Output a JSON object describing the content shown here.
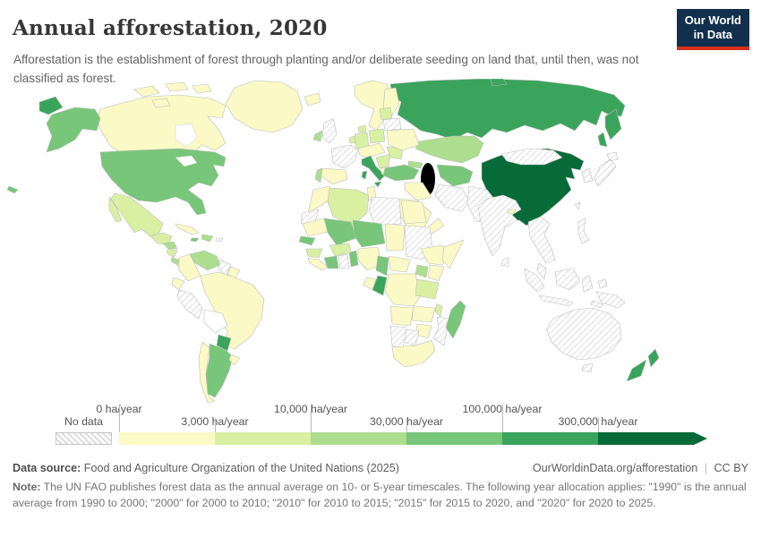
{
  "header": {
    "title": "Annual afforestation, 2020",
    "subtitle": "Afforestation is the establishment of forest through planting and/or deliberate seeding on land that, until then, was not classified as forest.",
    "logo_line1": "Our World",
    "logo_line2": "in Data"
  },
  "colors": {
    "brand_navy": "#12304d",
    "brand_red": "#dc2e1c",
    "title": "#373737",
    "subtitle": "#636363",
    "text": "#5d5d5d",
    "note": "#757575",
    "border": "#bcbcbc"
  },
  "legend": {
    "no_data_label": "No data",
    "tick_labels_top": [
      "0 ha/year",
      "10,000 ha/year",
      "100,000 ha/year"
    ],
    "tick_labels_bottom": [
      "3,000 ha/year",
      "30,000 ha/year",
      "300,000 ha/year"
    ]
  },
  "footer": {
    "source_label": "Data source:",
    "source_text": "Food and Agriculture Organization of the United Nations (2025)",
    "url": "OurWorldinData.org/afforestation",
    "separator": "|",
    "license": "CC BY",
    "note_label": "Note:",
    "note_text": "The UN FAO publishes forest data as the annual average on 10- or 5-year timescales. The following year allocation applies: \"1990\" is the annual average from 1990 to 2000; \"2000\" for 2000 to 2010; \"2010\" for 2010 to 2015; \"2015\" for 2015 to 2020, and \"2020\" for 2020 to 2025."
  },
  "chart_data": {
    "type": "choropleth-map",
    "title": "Annual afforestation, 2020",
    "unit": "ha/year",
    "legend_position": "bottom",
    "no_data_style": "diagonal-hatch",
    "bin_colors": [
      "#fbf9c5",
      "#d9f0a3",
      "#addd8e",
      "#78c679",
      "#3aa45c",
      "#066b38"
    ],
    "bins": [
      {
        "label": "0–3,000 ha/year",
        "color": "#fbf9c5"
      },
      {
        "label": "3,000–10,000 ha/year",
        "color": "#d9f0a3"
      },
      {
        "label": "10,000–30,000 ha/year",
        "color": "#addd8e"
      },
      {
        "label": "30,000–100,000 ha/year",
        "color": "#78c679"
      },
      {
        "label": "100,000–300,000 ha/year",
        "color": "#3aa45c"
      },
      {
        "label": "300,000+ ha/year",
        "color": "#066b38"
      }
    ],
    "countries": {
      "greenland": 1,
      "canada": 1,
      "alaska": 4,
      "usa": 4,
      "hawaii": 4,
      "mexico": 2,
      "guatemala": 2,
      "honduras": 3,
      "nicaragua": 2,
      "costa-rica": 3,
      "panama": 2,
      "cuba": 1,
      "jamaica": 4,
      "hispaniola": 3,
      "puerto-rico": "no-data",
      "venezuela": 3,
      "colombia": 1,
      "guyana": "no-data",
      "suriname": 1,
      "ecuador": 1,
      "peru": "no-data",
      "brazil": 1,
      "bolivia": "white",
      "paraguay": 5,
      "argentina": 4,
      "chile": 1,
      "uruguay": 1,
      "iceland": 1,
      "scandinavia": 1,
      "finland": 1,
      "uk": "no-data",
      "ireland": 3,
      "france": "no-data",
      "spain": 1,
      "portugal": 3,
      "germany": 2,
      "denmark": 2,
      "benelux": 2,
      "poland": 2,
      "central-europe": 1,
      "italy": 5,
      "balkans": 2,
      "greece": 1,
      "romania": 2,
      "ukraine": 1,
      "belarus": "no-data",
      "baltics": 2,
      "russia": 5,
      "kazakhstan": 3,
      "uzbekistan": 4,
      "caucasus": 3,
      "turkey": 4,
      "syria-iraq": 1,
      "iran": "no-data",
      "saudi-arabia": 1,
      "yemen-oman": 1,
      "afghanistan-pakistan": "no-data",
      "india": "no-data",
      "sri-lanka": "no-data",
      "bhutan": 1,
      "china": 6,
      "mongolia": "no-data",
      "korea": "no-data",
      "japan": "no-data",
      "taiwan": "no-data",
      "indochina": "no-data",
      "malaysia": "no-data",
      "philippines": "no-data",
      "indonesia": "no-data",
      "papua-new-guinea": "no-data",
      "morocco": 1,
      "western-sahara": "no-data",
      "algeria": 2,
      "tunisia": 1,
      "libya": "no-data",
      "egypt": 1,
      "mauritania": 1,
      "mali": 4,
      "senegal": 4,
      "guinea": 2,
      "sierra-leone-liberia": 1,
      "ivory-coast": 4,
      "ghana": "no-data",
      "benin": 4,
      "burkina-faso": 2,
      "niger": 4,
      "nigeria": 1,
      "chad": 1,
      "sudan": "no-data",
      "ethiopia": 1,
      "somalia": 1,
      "kenya": 1,
      "uganda": 3,
      "tanzania": 2,
      "cameroon": 4,
      "central-african-republic": 1,
      "gabon": 1,
      "congo": 5,
      "drc": 1,
      "angola": 1,
      "zambia": 1,
      "malawi": 2,
      "mozambique": "no-data",
      "zimbabwe": 1,
      "botswana": "no-data",
      "namibia": "no-data",
      "south-africa": 1,
      "madagascar": 4,
      "australia": "no-data",
      "tasmania": "no-data",
      "new-zealand": 5
    }
  }
}
